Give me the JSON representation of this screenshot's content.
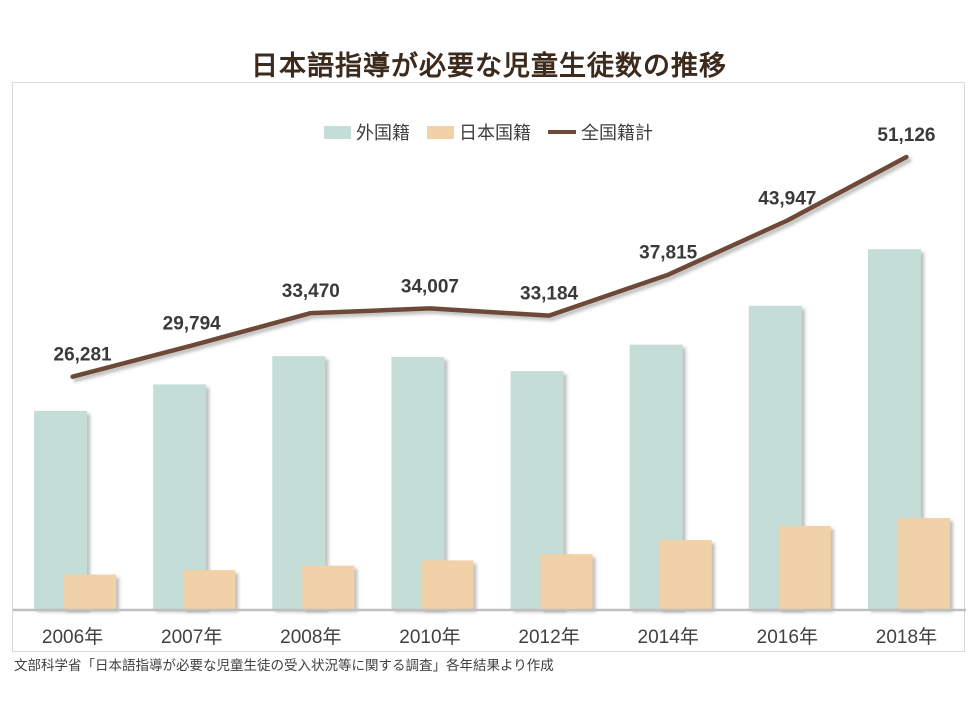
{
  "title": "日本語指導が必要な児童生徒数の推移",
  "footer": "文部科学省「日本語指導が必要な児童生徒の受入状況等に関する調査」各年結果より作成",
  "legend": [
    {
      "label": "外国籍",
      "type": "box",
      "color": "#c4ddd6"
    },
    {
      "label": "日本国籍",
      "type": "box",
      "color": "#f1d1a7"
    },
    {
      "label": "全国籍計",
      "type": "line",
      "color": "#6e4a37"
    }
  ],
  "palette": {
    "foreign_bar": "#c4ddd6",
    "japanese_bar": "#f1d1a7",
    "total_line": "#6e4a37",
    "title_text": "#3c2a1d",
    "label_text": "#3a3a3a",
    "axis_line": "#bfbfbf",
    "frame_border": "#d9d9d9"
  },
  "chart_data": {
    "type": "bar",
    "subtype": "bar+line combo, overlapped bars, no y-axis shown",
    "categories": [
      "2006年",
      "2007年",
      "2008年",
      "2010年",
      "2012年",
      "2014年",
      "2016年",
      "2018年"
    ],
    "series": [
      {
        "name": "外国籍",
        "type": "bar",
        "color": "#c4ddd6",
        "values": [
          22400,
          25400,
          28600,
          28500,
          26900,
          29900,
          34300,
          40700
        ],
        "note": "bars unlabeled; values estimated from bar pixel heights"
      },
      {
        "name": "日本国籍",
        "type": "bar",
        "color": "#f1d1a7",
        "values": [
          3900,
          4400,
          4900,
          5500,
          6200,
          7800,
          9400,
          10300
        ],
        "note": "bars unlabeled; values estimated from bar pixel heights"
      },
      {
        "name": "全国籍計",
        "type": "line",
        "color": "#6e4a37",
        "values": [
          26281,
          29794,
          33470,
          34007,
          33184,
          37815,
          43947,
          51126
        ],
        "labels": [
          "26,281",
          "29,794",
          "33,470",
          "34,007",
          "33,184",
          "37,815",
          "43,947",
          "51,126"
        ]
      }
    ],
    "title": "日本語指導が必要な児童生徒数の推移",
    "xlabel": "",
    "ylabel": "",
    "ylim": [
      0,
      59500
    ],
    "gridlines": false,
    "legend_position": "top-center",
    "source_note": "文部科学省「日本語指導が必要な児童生徒の受入状況等に関する調査」各年結果より作成"
  }
}
